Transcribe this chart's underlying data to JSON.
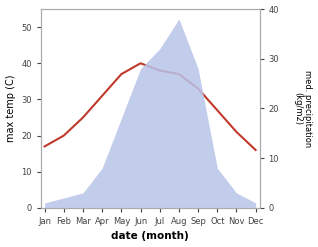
{
  "months": [
    "Jan",
    "Feb",
    "Mar",
    "Apr",
    "May",
    "Jun",
    "Jul",
    "Aug",
    "Sep",
    "Oct",
    "Nov",
    "Dec"
  ],
  "temperature": [
    17,
    20,
    25,
    31,
    37,
    40,
    38,
    37,
    33,
    27,
    21,
    16
  ],
  "precipitation": [
    1,
    2,
    3,
    8,
    18,
    28,
    32,
    38,
    28,
    8,
    3,
    1
  ],
  "temp_color": "#c0392b",
  "precip_fill_color": "#b8c4e8",
  "ylabel_left": "max temp (C)",
  "ylabel_right": "med. precipitation\n(kg/m2)",
  "xlabel": "date (month)",
  "ylim_left": [
    0,
    55
  ],
  "ylim_right": [
    0,
    40
  ],
  "left_yticks": [
    0,
    10,
    20,
    30,
    40,
    50
  ],
  "right_yticks": [
    0,
    10,
    20,
    30,
    40
  ],
  "background_color": "#ffffff"
}
